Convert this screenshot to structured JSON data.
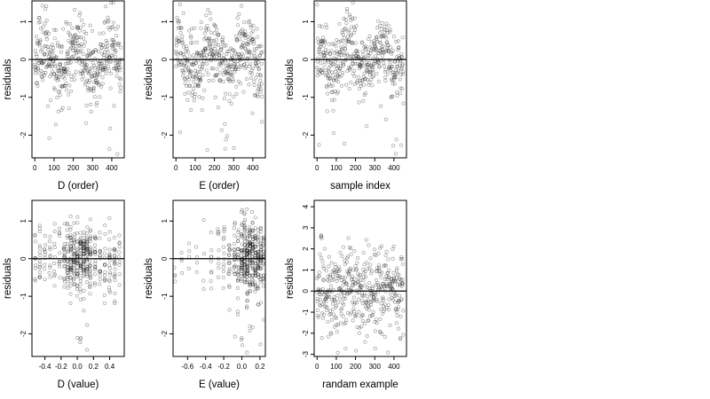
{
  "chart_data": [
    {
      "type": "scatter",
      "xlabel": "D (order)",
      "ylabel": "residuals",
      "xticks": [
        0,
        100,
        200,
        300,
        400
      ],
      "yticks": [
        -2,
        -1,
        0,
        1
      ],
      "xlim": [
        -15,
        465
      ],
      "ylim": [
        -2.6,
        1.55
      ],
      "hline": 0,
      "gen": {
        "mode": "index",
        "n": 450,
        "seed": 11,
        "sd": 0.55,
        "phase": 0.0
      }
    },
    {
      "type": "scatter",
      "xlabel": "E (order)",
      "ylabel": "residuals",
      "xticks": [
        0,
        100,
        200,
        300,
        400
      ],
      "yticks": [
        -2,
        -1,
        0,
        1
      ],
      "xlim": [
        -15,
        465
      ],
      "ylim": [
        -2.6,
        1.55
      ],
      "hline": 0,
      "gen": {
        "mode": "index",
        "n": 450,
        "seed": 23,
        "sd": 0.55,
        "phase": 1.3
      }
    },
    {
      "type": "scatter",
      "xlabel": "sample index",
      "ylabel": "residuals",
      "xticks": [
        0,
        100,
        200,
        300,
        400
      ],
      "yticks": [
        -2,
        -1,
        0,
        1
      ],
      "xlim": [
        -15,
        465
      ],
      "ylim": [
        -2.6,
        1.55
      ],
      "hline": 0,
      "gen": {
        "mode": "index",
        "n": 450,
        "seed": 37,
        "sd": 0.55,
        "phase": 2.1
      }
    },
    {
      "type": "scatter",
      "xlabel": "D (value)",
      "ylabel": "residuals",
      "xticks": [
        -0.4,
        -0.2,
        0.0,
        0.2,
        0.4
      ],
      "yticks": [
        -2,
        -1,
        0,
        1
      ],
      "xlim": [
        -0.56,
        0.58
      ],
      "ylim": [
        -2.6,
        1.55
      ],
      "hline": 0,
      "gen": {
        "mode": "columns",
        "n": 450,
        "seed": 51,
        "sd": 0.55,
        "cols": [
          -0.52,
          -0.46,
          -0.4,
          -0.34,
          -0.28,
          -0.22,
          -0.16,
          -0.12,
          -0.08,
          -0.04,
          0.0,
          0.04,
          0.08,
          0.12,
          0.16,
          0.22,
          0.28,
          0.34,
          0.4,
          0.46,
          0.52
        ],
        "weights": [
          2,
          3,
          2,
          2,
          2,
          2,
          4,
          5,
          7,
          6,
          7,
          7,
          8,
          7,
          6,
          4,
          3,
          3,
          4,
          4,
          2
        ]
      }
    },
    {
      "type": "scatter",
      "xlabel": "E (value)",
      "ylabel": "residuals",
      "xticks": [
        -0.6,
        -0.4,
        -0.2,
        0.0,
        0.2
      ],
      "yticks": [
        -2,
        -1,
        0,
        1
      ],
      "xlim": [
        -0.76,
        0.26
      ],
      "ylim": [
        -2.6,
        1.55
      ],
      "hline": 0,
      "gen": {
        "mode": "columns",
        "n": 450,
        "seed": 67,
        "sd": 0.55,
        "cols": [
          -0.74,
          -0.66,
          -0.58,
          -0.5,
          -0.42,
          -0.34,
          -0.26,
          -0.2,
          -0.14,
          -0.08,
          -0.04,
          0.0,
          0.03,
          0.06,
          0.09,
          0.12,
          0.15,
          0.18,
          0.21,
          0.24
        ],
        "weights": [
          1,
          1,
          1,
          1,
          1,
          2,
          2,
          3,
          4,
          5,
          6,
          9,
          10,
          11,
          10,
          9,
          8,
          8,
          7,
          5
        ]
      }
    },
    {
      "type": "scatter",
      "xlabel": "randam example",
      "ylabel": "residuals",
      "xticks": [
        0,
        100,
        200,
        300,
        400
      ],
      "yticks": [
        -3,
        -2,
        -1,
        0,
        1,
        2,
        3,
        4
      ],
      "xlim": [
        -15,
        465
      ],
      "ylim": [
        -3.1,
        4.3
      ],
      "hline": 0,
      "gen": {
        "mode": "index",
        "n": 450,
        "seed": 83,
        "sd": 1.05,
        "phase": 0.0,
        "flat": true
      }
    }
  ]
}
